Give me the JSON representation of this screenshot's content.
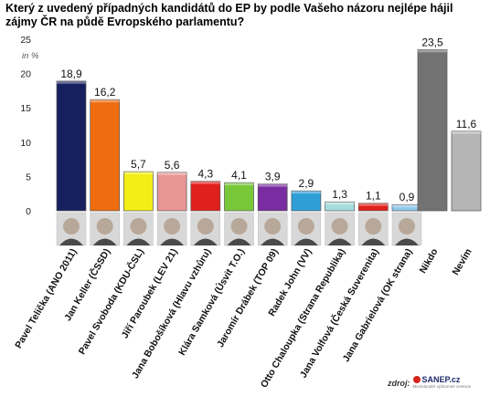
{
  "chart_data": {
    "type": "bar",
    "title": "Který z uvedený případných kandidátů do EP by podle Vašeho názoru nejlépe hájil zájmy ČR na půdě Evropského parlamentu?",
    "unit_label": "in %",
    "ylim": [
      0,
      25
    ],
    "yticks": [
      "25",
      "20",
      "15",
      "10",
      "5",
      "0"
    ],
    "categories": [
      "Pavel Telička (ANO 2011)",
      "Jan Keller (ČSSD)",
      "Pavel Svoboda (KDU-ČSL)",
      "Jiří Paroubek (LEV 21)",
      "Jana Bobošíková (Hlavu vzhůru)",
      "Klára Samková (Úsvit T.O.)",
      "Jaromír Drábek (TOP 09)",
      "Radek John (VV)",
      "Otto Chaloupka (Strana Republika)",
      "Jana Volfová (Česká Suverenita)",
      "Jana Gabrielová (OK strana)",
      "Nikdo",
      "Nevím"
    ],
    "values": [
      18.9,
      16.2,
      5.7,
      5.6,
      4.3,
      4.1,
      3.9,
      2.9,
      1.3,
      1.1,
      0.9,
      23.5,
      11.6
    ],
    "value_labels": [
      "18,9",
      "16,2",
      "5,7",
      "5,6",
      "4,3",
      "4,1",
      "3,9",
      "2,9",
      "1,3",
      "1,1",
      "0,9",
      "23,5",
      "11,6"
    ],
    "colors": [
      "#16205e",
      "#ef6c10",
      "#f2ef16",
      "#e89595",
      "#e0201c",
      "#78c83a",
      "#7a2da0",
      "#2f9ed6",
      "#a6dcdb",
      "#e0201c",
      "#8ec8eb",
      "#727272",
      "#b5b5b5"
    ],
    "grid": false,
    "legend": "none"
  },
  "source": {
    "label": "zdroj:",
    "logo_text": "SANEP.cz",
    "logo_subtitle": "Mezinárodní výzkumné centrum"
  }
}
